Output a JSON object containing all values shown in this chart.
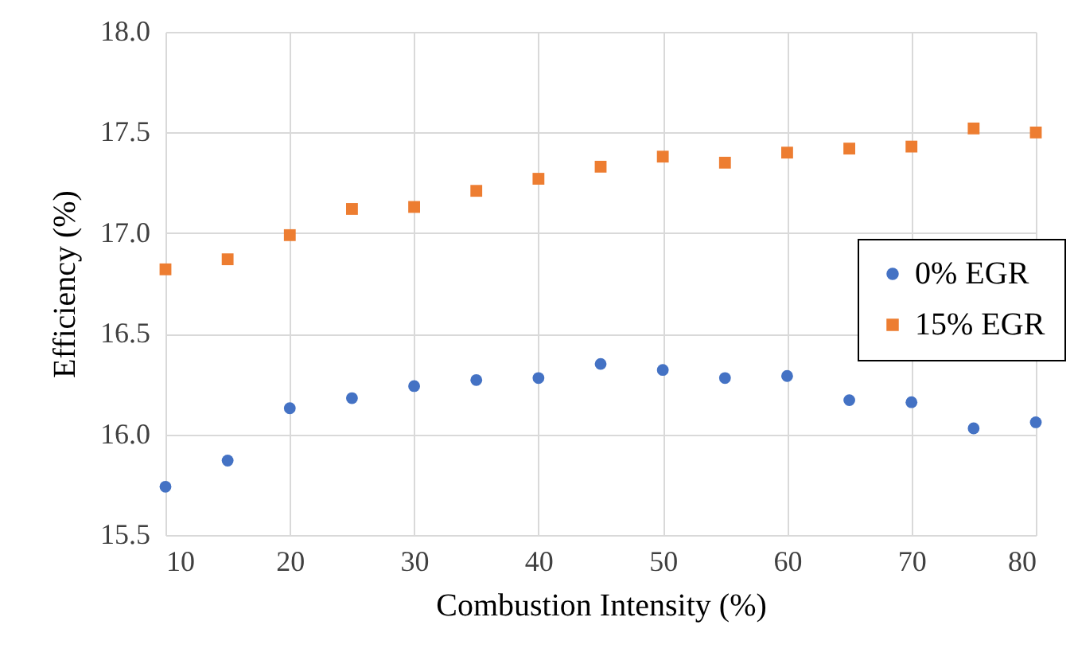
{
  "chart_data": {
    "type": "scatter",
    "xlabel": "Combustion Intensity (%)",
    "ylabel": "Efficiency (%)",
    "x": [
      10,
      15,
      20,
      25,
      30,
      35,
      40,
      45,
      50,
      55,
      60,
      65,
      70,
      75,
      80
    ],
    "series": [
      {
        "name": "0% EGR",
        "color": "#4472c4",
        "marker": "circle",
        "values": [
          15.74,
          15.87,
          16.13,
          16.18,
          16.24,
          16.27,
          16.28,
          16.35,
          16.32,
          16.28,
          16.29,
          16.17,
          16.16,
          16.03,
          16.06
        ]
      },
      {
        "name": "15% EGR",
        "color": "#ed7d31",
        "marker": "square",
        "values": [
          16.82,
          16.87,
          16.99,
          17.12,
          17.13,
          17.21,
          17.27,
          17.33,
          17.38,
          17.35,
          17.4,
          17.42,
          17.43,
          17.52,
          17.5
        ]
      }
    ],
    "xlim": [
      10,
      80
    ],
    "xticks": [
      10,
      20,
      30,
      40,
      50,
      60,
      70,
      80
    ],
    "ylim": [
      15.5,
      18.0
    ],
    "yticks": [
      {
        "value": 15.5,
        "label": "15.5"
      },
      {
        "value": 16,
        "label": "16.0"
      },
      {
        "value": 16.5,
        "label": "16.5"
      },
      {
        "value": 17,
        "label": "17.0"
      },
      {
        "value": 17.5,
        "label": "17.5"
      },
      {
        "value": 18,
        "label": "18.0"
      }
    ],
    "grid": true,
    "legend": "right"
  }
}
